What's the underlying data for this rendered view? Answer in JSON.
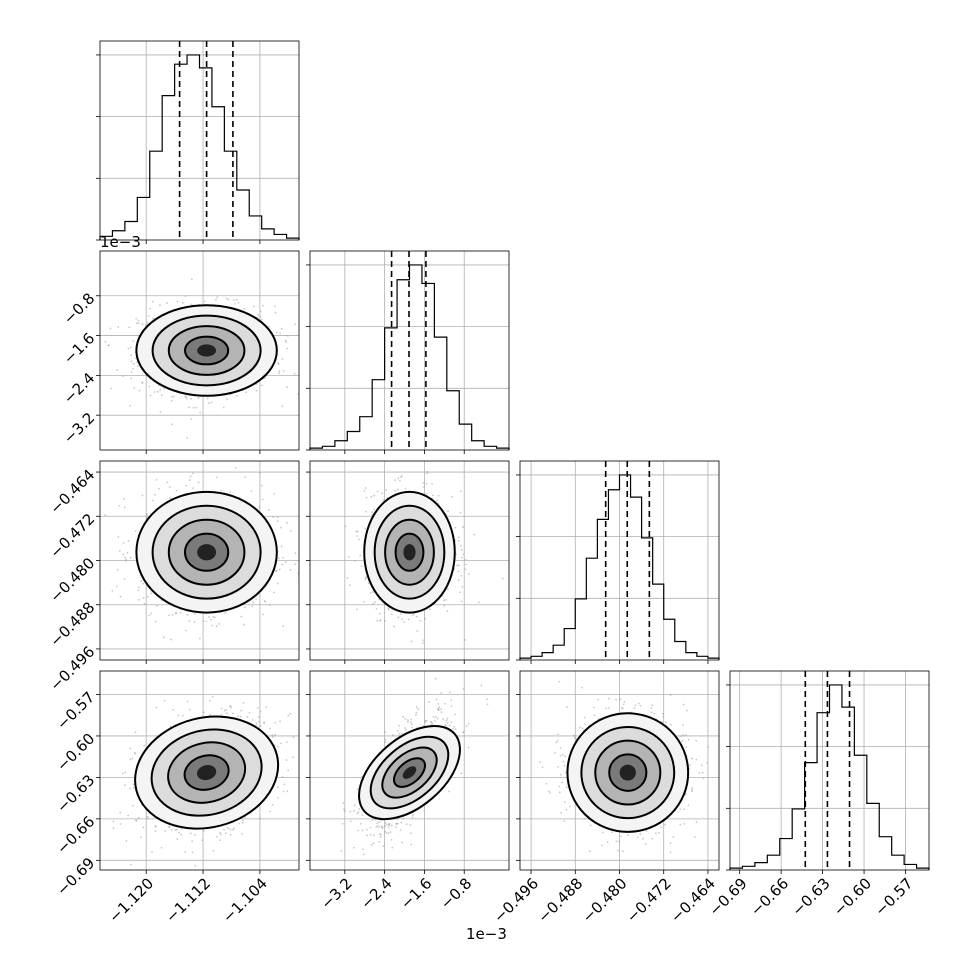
{
  "chart_data": {
    "type": "corner",
    "params": [
      {
        "name": "",
        "mean": -1.1115,
        "sigma": 0.0038,
        "range": [
          -1.1265,
          -1.0985
        ],
        "ticks": [
          -1.12,
          -1.112,
          -1.104
        ],
        "tick_labels": [
          "−1.120",
          "−1.112",
          "−1.104"
        ],
        "quantiles": [
          -1.1153,
          -1.1115,
          -1.1078
        ],
        "hist_counts": [
          0.02,
          0.05,
          0.1,
          0.23,
          0.48,
          0.78,
          0.95,
          1.0,
          0.93,
          0.72,
          0.48,
          0.27,
          0.13,
          0.06,
          0.03,
          0.01
        ]
      },
      {
        "name": "",
        "mean": -0.0019,
        "sigma": 0.00035,
        "range": [
          -0.0039,
          0.0001
        ],
        "ticks": [
          -0.0032,
          -0.0024,
          -0.0016,
          -0.0008
        ],
        "tick_labels": [
          "−3.2",
          "−2.4",
          "−1.6",
          "−0.8"
        ],
        "offset_label": "1e−3",
        "quantiles": [
          -0.00226,
          -0.00191,
          -0.00157
        ],
        "hist_counts": [
          0.01,
          0.02,
          0.05,
          0.1,
          0.18,
          0.38,
          0.66,
          0.92,
          1.0,
          0.9,
          0.61,
          0.32,
          0.14,
          0.05,
          0.02,
          0.01
        ]
      },
      {
        "name": "",
        "mean": -0.4785,
        "sigma": 0.0042,
        "range": [
          -0.498,
          -0.462
        ],
        "ticks": [
          -0.496,
          -0.488,
          -0.48,
          -0.472,
          -0.464
        ],
        "tick_labels": [
          "−0.496",
          "−0.488",
          "−0.480",
          "−0.472",
          "−0.464"
        ],
        "quantiles": [
          -0.4825,
          -0.4786,
          -0.4746
        ],
        "hist_counts": [
          0.01,
          0.02,
          0.04,
          0.08,
          0.17,
          0.33,
          0.55,
          0.76,
          0.92,
          1.0,
          0.88,
          0.66,
          0.41,
          0.22,
          0.1,
          0.04,
          0.02,
          0.01
        ]
      },
      {
        "name": "",
        "mean": -0.6265,
        "sigma": 0.0165,
        "range": [
          -0.697,
          -0.553
        ],
        "ticks": [
          -0.69,
          -0.66,
          -0.63,
          -0.6,
          -0.57
        ],
        "tick_labels": [
          "−0.69",
          "−0.66",
          "−0.63",
          "−0.60",
          "−0.57"
        ],
        "quantiles": [
          -0.6425,
          -0.6265,
          -0.6105
        ],
        "hist_counts": [
          0.01,
          0.02,
          0.04,
          0.08,
          0.17,
          0.33,
          0.58,
          0.85,
          1.0,
          0.88,
          0.62,
          0.36,
          0.18,
          0.08,
          0.03,
          0.01
        ]
      }
    ],
    "correlations": [
      [
        0,
        1,
        0.0
      ],
      [
        0,
        2,
        0.0
      ],
      [
        0,
        3,
        0.3
      ],
      [
        1,
        2,
        0.0
      ],
      [
        1,
        3,
        0.65
      ],
      [
        2,
        3,
        0.0
      ]
    ],
    "diag_top_offset_label": "1e−3",
    "bottom_offset_label": "1e−3",
    "grid": true
  }
}
